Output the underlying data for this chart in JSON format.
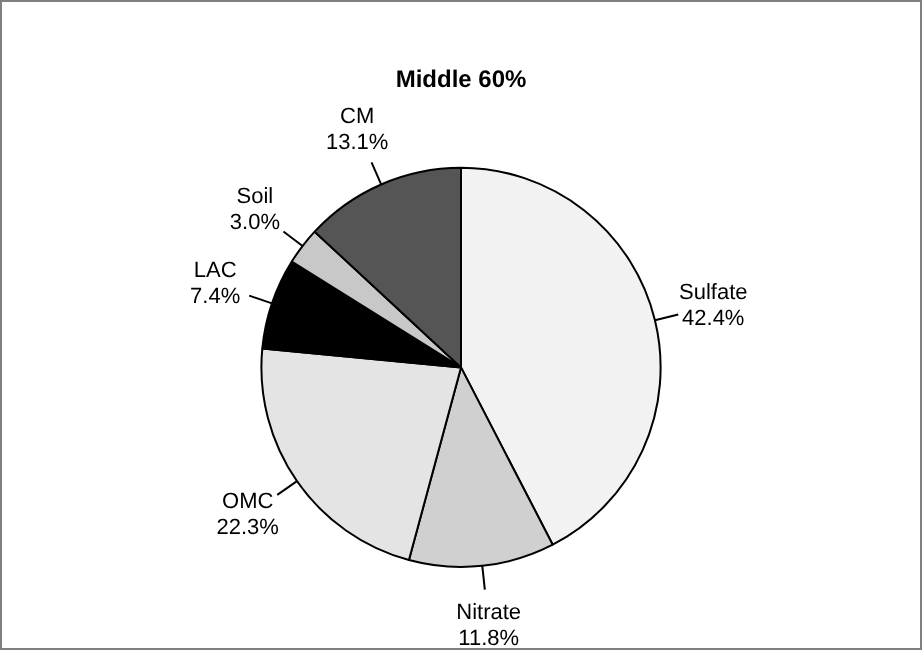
{
  "chart_data": {
    "type": "pie",
    "title": "Middle 60%",
    "categories": [
      "Sulfate",
      "Nitrate",
      "OMC",
      "LAC",
      "Soil",
      "CM"
    ],
    "values": [
      42.4,
      11.8,
      22.3,
      7.4,
      3.0,
      13.1
    ],
    "value_labels": [
      "42.4%",
      "11.8%",
      "22.3%",
      "7.4%",
      "3.0%",
      "13.1%"
    ],
    "colors": [
      "#f2f2f2",
      "#d0d0d0",
      "#e4e4e4",
      "#000000",
      "#c8c8c8",
      "#555555"
    ],
    "legend": false
  }
}
